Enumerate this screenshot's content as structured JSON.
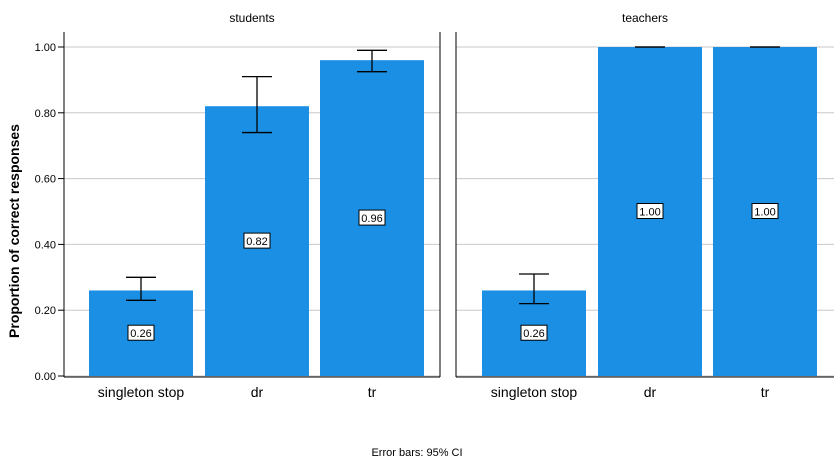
{
  "chart_data": {
    "type": "bar",
    "ylabel": "Proportion of correct responses",
    "ylim": [
      0,
      1
    ],
    "yticks": [
      "0.00",
      "0.20",
      "0.40",
      "0.60",
      "0.80",
      "1.00"
    ],
    "grid": true,
    "bar_color": "#1a8fe3",
    "panels": [
      {
        "title": "students",
        "categories": [
          "singleton stop",
          "dr",
          "tr"
        ],
        "values": [
          0.26,
          0.82,
          0.96
        ],
        "labels": [
          "0.26",
          "0.82",
          "0.96"
        ],
        "ci_low": [
          0.23,
          0.74,
          0.925
        ],
        "ci_high": [
          0.3,
          0.91,
          0.99
        ]
      },
      {
        "title": "teachers",
        "categories": [
          "singleton stop",
          "dr",
          "tr"
        ],
        "values": [
          0.26,
          1.0,
          1.0
        ],
        "labels": [
          "0.26",
          "1.00",
          "1.00"
        ],
        "ci_low": [
          0.22,
          1.0,
          1.0
        ],
        "ci_high": [
          0.31,
          1.0,
          1.0
        ]
      }
    ],
    "footnote": "Error bars: 95% CI"
  }
}
